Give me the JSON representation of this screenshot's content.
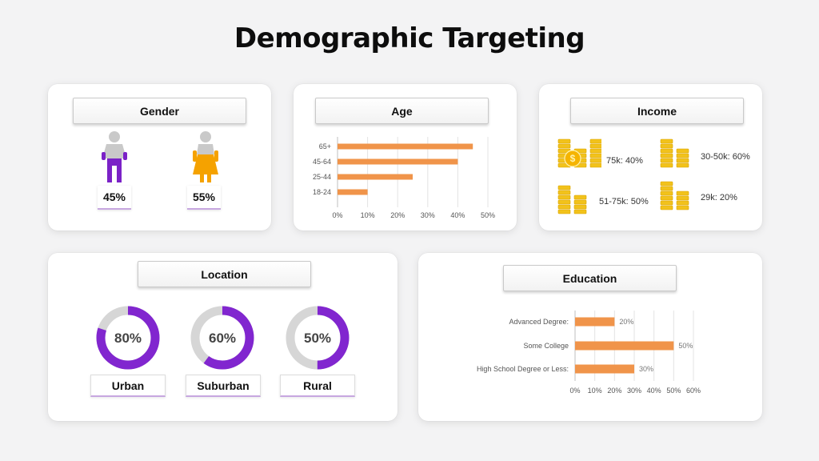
{
  "slide": {
    "title": "Demographic Targeting"
  },
  "gender": {
    "header": "Gender",
    "male_pct": "45%",
    "female_pct": "55%",
    "male_color": "#7b22c7",
    "female_color": "#f5a200"
  },
  "age": {
    "header": "Age"
  },
  "income": {
    "header": "Income",
    "items": [
      "75k: 40%",
      "30-50k: 60%",
      "51-75k: 50%",
      "29k: 20%"
    ],
    "coin_color": "#f2c21b"
  },
  "location": {
    "header": "Location",
    "items": [
      {
        "label": "Urban",
        "pct_text": "80%",
        "value": 0.8
      },
      {
        "label": "Suburban",
        "pct_text": "60%",
        "value": 0.6
      },
      {
        "label": "Rural",
        "pct_text": "50%",
        "value": 0.5
      }
    ],
    "ring_color": "#8126cf",
    "track_color": "#d6d6d6"
  },
  "education": {
    "header": "Education"
  },
  "chart_data": [
    {
      "type": "bar",
      "orientation": "horizontal",
      "categories": [
        "65+",
        "45-64",
        "25-44",
        "18-24"
      ],
      "values": [
        45,
        40,
        25,
        10
      ],
      "xlim": [
        0,
        50
      ],
      "xticks": [
        "0%",
        "10%",
        "20%",
        "30%",
        "40%",
        "50%"
      ],
      "color": "#f0944a",
      "grid": true
    },
    {
      "type": "bar",
      "orientation": "horizontal",
      "categories": [
        "Advanced Degree:",
        "Some College",
        "High School Degree or Less:"
      ],
      "values": [
        20,
        50,
        30
      ],
      "data_labels": [
        "20%",
        "50%",
        "30%"
      ],
      "xlim": [
        0,
        60
      ],
      "xticks": [
        "0%",
        "10%",
        "20%",
        "30%",
        "40%",
        "50%",
        "60%"
      ],
      "color": "#f0944a",
      "grid": true
    }
  ]
}
